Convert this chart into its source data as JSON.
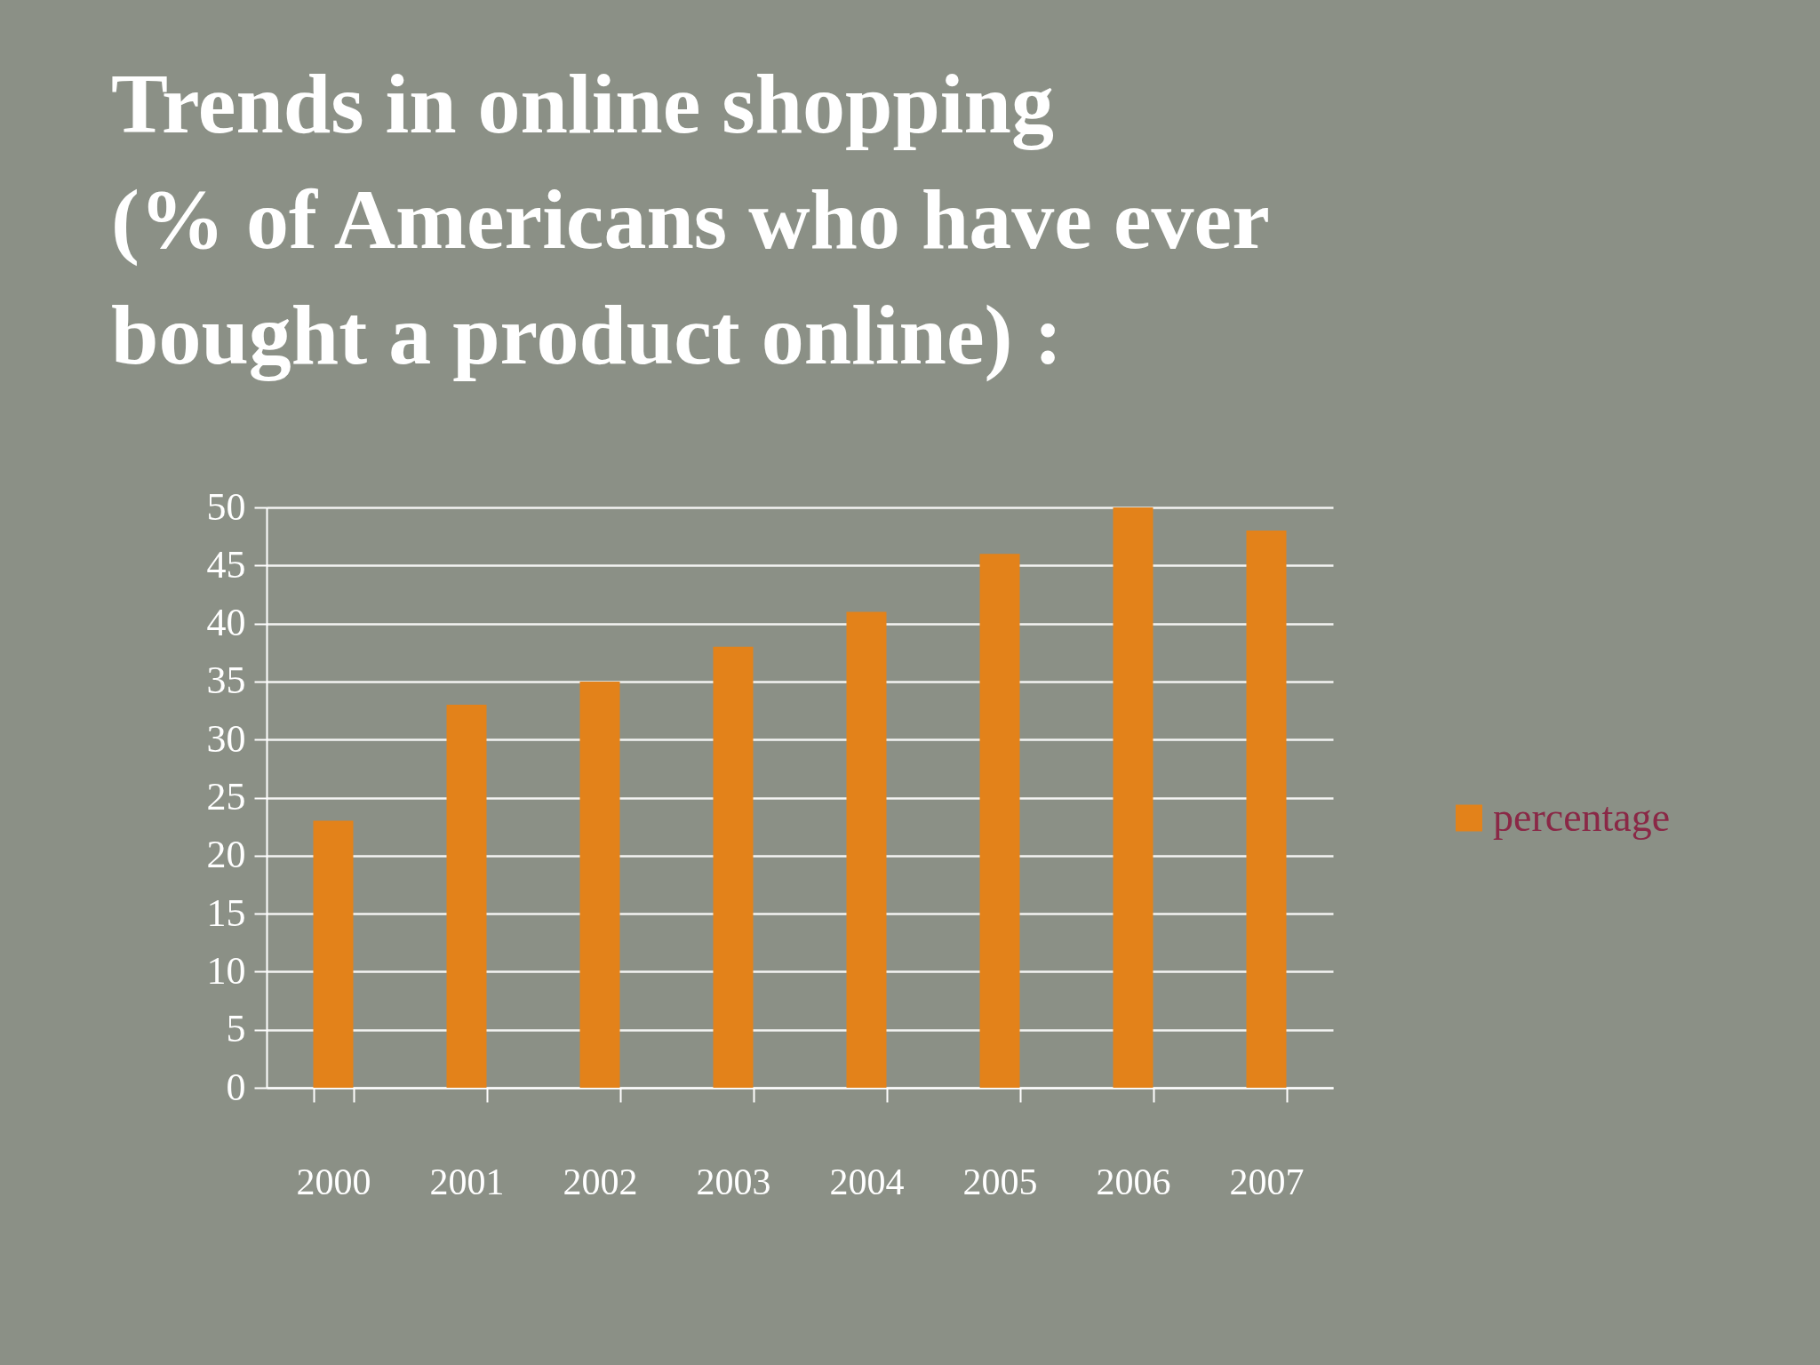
{
  "chart_data": {
    "type": "bar",
    "title": "Trends in online shopping\n(% of Americans who have ever\nbought a product online) :",
    "categories": [
      "2000",
      "2001",
      "2002",
      "2003",
      "2004",
      "2005",
      "2006",
      "2007"
    ],
    "series": [
      {
        "name": "percentage",
        "color": "#e3821a",
        "values": [
          23,
          33,
          35,
          38,
          41,
          46,
          50,
          48
        ]
      }
    ],
    "ylim": [
      0,
      50
    ],
    "yticks": [
      0,
      5,
      10,
      15,
      20,
      25,
      30,
      35,
      40,
      45,
      50
    ],
    "grid": "y",
    "legend": "right"
  }
}
